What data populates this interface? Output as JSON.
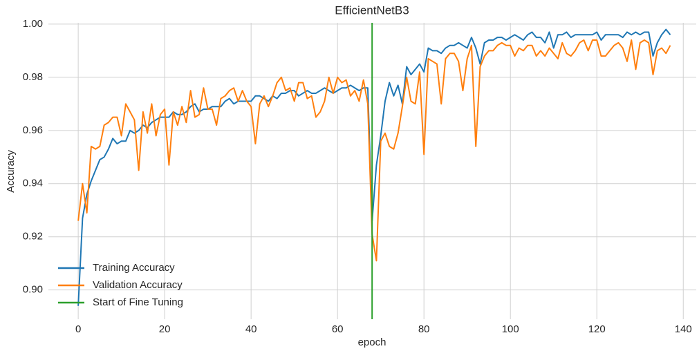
{
  "chart_data": {
    "type": "line",
    "title": "EfficientNetB3",
    "xlabel": "epoch",
    "ylabel": "Accuracy",
    "x": [
      0,
      1,
      2,
      3,
      4,
      5,
      6,
      7,
      8,
      9,
      10,
      11,
      12,
      13,
      14,
      15,
      16,
      17,
      18,
      19,
      20,
      21,
      22,
      23,
      24,
      25,
      26,
      27,
      28,
      29,
      30,
      31,
      32,
      33,
      34,
      35,
      36,
      37,
      38,
      39,
      40,
      41,
      42,
      43,
      44,
      45,
      46,
      47,
      48,
      49,
      50,
      51,
      52,
      53,
      54,
      55,
      56,
      57,
      58,
      59,
      60,
      61,
      62,
      63,
      64,
      65,
      66,
      67,
      68,
      69,
      70,
      71,
      72,
      73,
      74,
      75,
      76,
      77,
      78,
      79,
      80,
      81,
      82,
      83,
      84,
      85,
      86,
      87,
      88,
      89,
      90,
      91,
      92,
      93,
      94,
      95,
      96,
      97,
      98,
      99,
      100,
      101,
      102,
      103,
      104,
      105,
      106,
      107,
      108,
      109,
      110,
      111,
      112,
      113,
      114,
      115,
      116,
      117,
      118,
      119,
      120,
      121,
      122,
      123,
      124,
      125,
      126,
      127,
      128,
      129,
      130,
      131,
      132,
      133,
      134,
      135,
      136,
      137
    ],
    "series": [
      {
        "name": "Training Accuracy",
        "color": "#1f77b4",
        "values": [
          0.894,
          0.927,
          0.936,
          0.941,
          0.945,
          0.949,
          0.95,
          0.953,
          0.957,
          0.955,
          0.956,
          0.956,
          0.96,
          0.959,
          0.96,
          0.962,
          0.961,
          0.963,
          0.964,
          0.965,
          0.965,
          0.965,
          0.967,
          0.966,
          0.966,
          0.967,
          0.969,
          0.97,
          0.967,
          0.968,
          0.968,
          0.969,
          0.969,
          0.969,
          0.971,
          0.972,
          0.97,
          0.971,
          0.971,
          0.971,
          0.971,
          0.973,
          0.973,
          0.972,
          0.971,
          0.973,
          0.972,
          0.974,
          0.974,
          0.975,
          0.975,
          0.973,
          0.974,
          0.975,
          0.974,
          0.974,
          0.975,
          0.976,
          0.975,
          0.974,
          0.975,
          0.976,
          0.976,
          0.977,
          0.976,
          0.975,
          0.976,
          0.976,
          0.926,
          0.947,
          0.958,
          0.971,
          0.978,
          0.973,
          0.977,
          0.97,
          0.984,
          0.981,
          0.983,
          0.985,
          0.982,
          0.991,
          0.99,
          0.99,
          0.989,
          0.991,
          0.992,
          0.992,
          0.993,
          0.992,
          0.991,
          0.995,
          0.991,
          0.985,
          0.993,
          0.994,
          0.994,
          0.995,
          0.995,
          0.994,
          0.995,
          0.996,
          0.995,
          0.994,
          0.996,
          0.997,
          0.995,
          0.995,
          0.993,
          0.997,
          0.991,
          0.996,
          0.996,
          0.997,
          0.995,
          0.996,
          0.996,
          0.996,
          0.996,
          0.996,
          0.997,
          0.994,
          0.996,
          0.996,
          0.996,
          0.996,
          0.995,
          0.997,
          0.996,
          0.997,
          0.996,
          0.997,
          0.997,
          0.988,
          0.993,
          0.996,
          0.998,
          0.996
        ]
      },
      {
        "name": "Validation Accuracy",
        "color": "#ff7f0e",
        "values": [
          0.926,
          0.94,
          0.929,
          0.954,
          0.953,
          0.954,
          0.962,
          0.963,
          0.965,
          0.965,
          0.958,
          0.97,
          0.967,
          0.964,
          0.945,
          0.967,
          0.959,
          0.97,
          0.958,
          0.966,
          0.968,
          0.947,
          0.967,
          0.962,
          0.969,
          0.963,
          0.975,
          0.965,
          0.966,
          0.976,
          0.968,
          0.968,
          0.962,
          0.972,
          0.973,
          0.975,
          0.976,
          0.971,
          0.975,
          0.971,
          0.969,
          0.955,
          0.97,
          0.973,
          0.969,
          0.973,
          0.978,
          0.98,
          0.975,
          0.976,
          0.971,
          0.978,
          0.978,
          0.972,
          0.973,
          0.965,
          0.967,
          0.971,
          0.98,
          0.974,
          0.98,
          0.978,
          0.979,
          0.973,
          0.975,
          0.971,
          0.979,
          0.97,
          0.921,
          0.911,
          0.956,
          0.959,
          0.954,
          0.953,
          0.959,
          0.969,
          0.98,
          0.971,
          0.97,
          0.982,
          0.951,
          0.987,
          0.986,
          0.985,
          0.97,
          0.987,
          0.989,
          0.989,
          0.986,
          0.975,
          0.987,
          0.992,
          0.954,
          0.984,
          0.988,
          0.99,
          0.99,
          0.992,
          0.993,
          0.992,
          0.992,
          0.988,
          0.991,
          0.99,
          0.992,
          0.992,
          0.988,
          0.99,
          0.988,
          0.991,
          0.989,
          0.987,
          0.993,
          0.989,
          0.988,
          0.99,
          0.993,
          0.994,
          0.99,
          0.994,
          0.994,
          0.988,
          0.988,
          0.99,
          0.992,
          0.993,
          0.991,
          0.986,
          0.994,
          0.983,
          0.993,
          0.994,
          0.993,
          0.981,
          0.99,
          0.991,
          0.989,
          0.992
        ]
      }
    ],
    "vlines": [
      {
        "name": "Start of Fine Tuning",
        "color": "#2ca02c",
        "x": 68
      }
    ],
    "xlim": [
      -6.9,
      143
    ],
    "ylim": [
      0.889,
      1.0005
    ],
    "xticks": [
      0,
      20,
      40,
      60,
      80,
      100,
      120,
      140
    ],
    "yticks": [
      {
        "value": 0.9,
        "label": "0.90"
      },
      0.92,
      0.94,
      0.96,
      0.98,
      {
        "value": 1,
        "label": "1.00"
      }
    ],
    "grid": true,
    "legend": "lower left"
  }
}
